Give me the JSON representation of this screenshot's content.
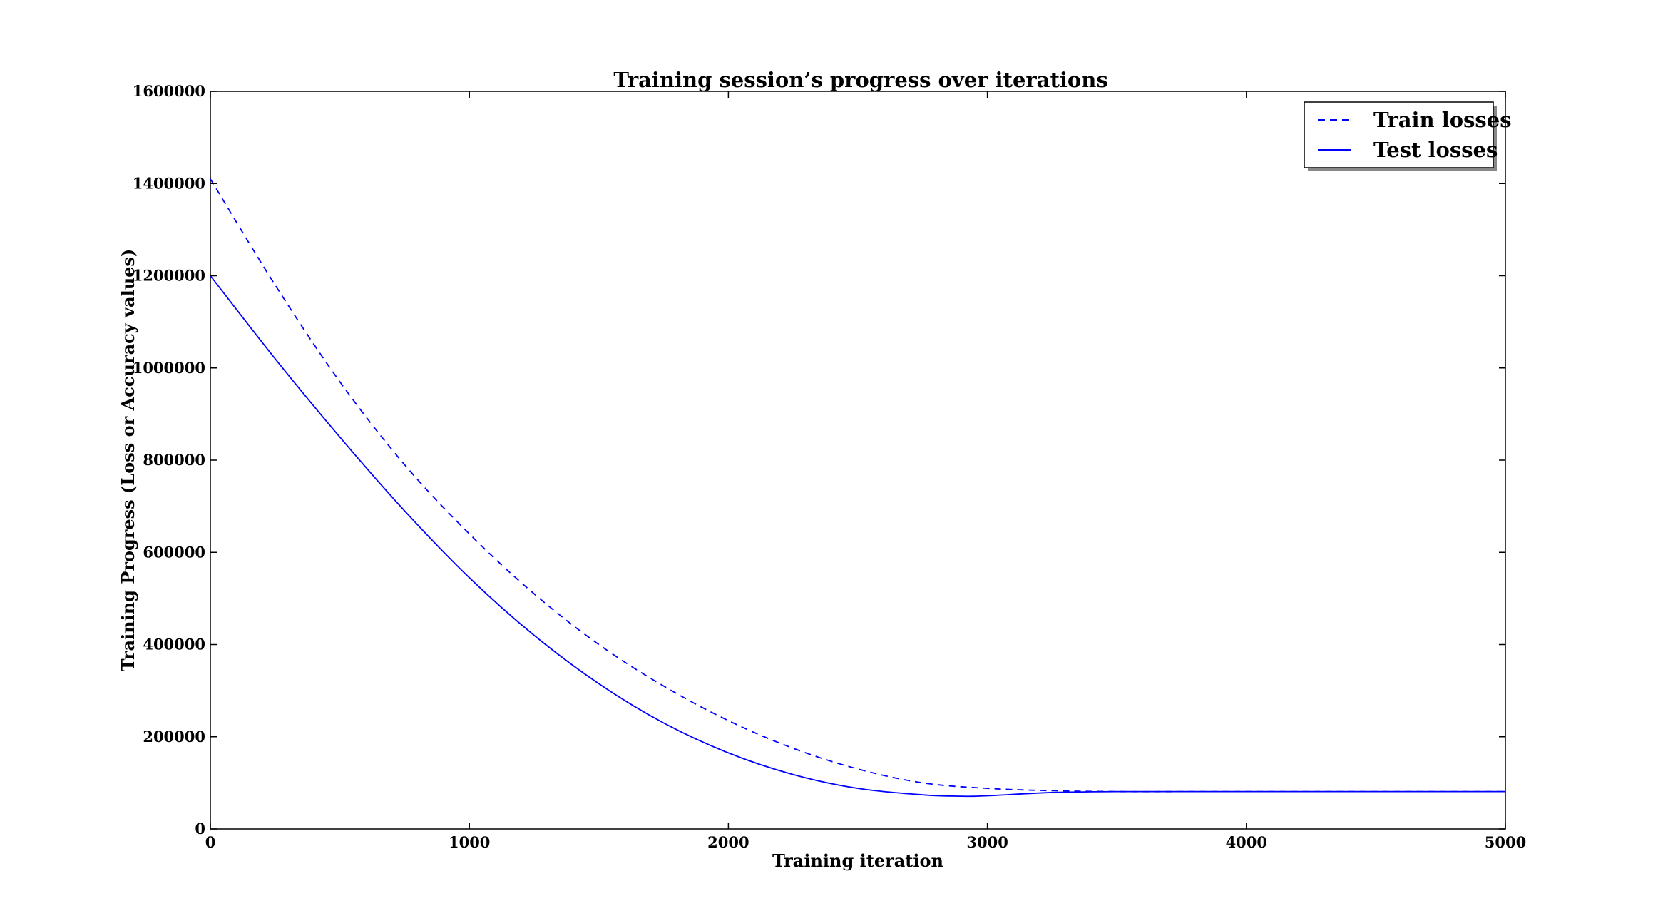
{
  "chart_data": {
    "type": "line",
    "title": "Training session’s progress over iterations",
    "xlabel": "Training iteration",
    "ylabel": "Training Progress (Loss or Accuracy values)",
    "xlim": [
      0,
      5000
    ],
    "ylim": [
      0,
      1600000
    ],
    "xticks": [
      0,
      1000,
      2000,
      3000,
      4000,
      5000
    ],
    "yticks": [
      0,
      200000,
      400000,
      600000,
      800000,
      1000000,
      1200000,
      1400000,
      1600000
    ],
    "grid": false,
    "legend_position": "top-right",
    "series": [
      {
        "name": "Train losses",
        "style": "dashed",
        "color": "#0000ff",
        "x": [
          0,
          250,
          500,
          750,
          1000,
          1250,
          1500,
          1750,
          2000,
          2250,
          2500,
          2750,
          3000,
          3250,
          3500,
          3750,
          4000,
          4500,
          5000
        ],
        "y": [
          1410000,
          1180000,
          970000,
          790000,
          640000,
          510000,
          400000,
          310000,
          235000,
          175000,
          130000,
          100000,
          88000,
          83000,
          81000,
          81000,
          81000,
          81000,
          81000
        ]
      },
      {
        "name": "Test losses",
        "style": "solid",
        "color": "#0000ff",
        "x": [
          0,
          250,
          500,
          750,
          1000,
          1250,
          1500,
          1750,
          2000,
          2250,
          2500,
          2750,
          2900,
          3000,
          3250,
          3500,
          4000,
          4500,
          5000
        ],
        "y": [
          1200000,
          1020000,
          850000,
          690000,
          545000,
          420000,
          315000,
          230000,
          165000,
          118000,
          88000,
          74000,
          71000,
          72000,
          79000,
          81000,
          81000,
          81000,
          81000
        ]
      }
    ]
  }
}
